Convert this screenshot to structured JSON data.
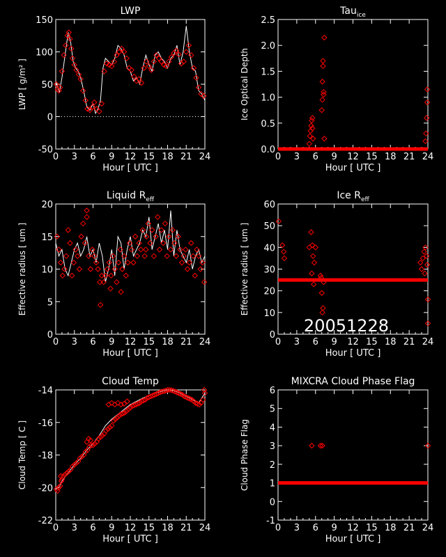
{
  "figure": {
    "background": "#000000",
    "foreground": "#ffffff",
    "marker_color": "#ff0000",
    "date_stamp": "20051228"
  },
  "chart_data": [
    {
      "id": "lwp",
      "type": "scatter",
      "title": "LWP",
      "xlabel": "Hour [ UTC ]",
      "ylabel": "LWP [ g/m² ]",
      "xlim": [
        0,
        24
      ],
      "ylim": [
        -50,
        150
      ],
      "xticks": [
        0,
        3,
        6,
        9,
        12,
        15,
        18,
        21,
        24
      ],
      "yticks": [
        -50,
        0,
        50,
        100,
        150
      ],
      "zero_line": true,
      "series": [
        {
          "role": "line",
          "color": "#ffffff",
          "x": [
            0,
            0.3,
            0.6,
            1.0,
            1.5,
            2.0,
            2.4,
            2.8,
            3.2,
            3.6,
            4.0,
            4.5,
            5.0,
            5.5,
            6.0,
            6.4,
            6.8,
            7.2,
            7.6,
            8.0,
            8.5,
            9.0,
            9.5,
            10.0,
            10.5,
            11.0,
            11.5,
            12.0,
            12.5,
            13.0,
            13.5,
            14.0,
            14.5,
            15.0,
            15.5,
            16.0,
            16.5,
            17.0,
            17.5,
            18.0,
            18.5,
            19.0,
            19.5,
            20.0,
            20.5,
            21.0,
            21.5,
            22.0,
            22.5,
            23.0,
            23.5,
            24.0
          ],
          "y": [
            55,
            45,
            38,
            60,
            95,
            130,
            115,
            85,
            75,
            70,
            60,
            40,
            15,
            10,
            20,
            5,
            12,
            25,
            75,
            90,
            85,
            80,
            90,
            110,
            105,
            95,
            75,
            70,
            55,
            60,
            50,
            75,
            95,
            80,
            70,
            95,
            100,
            90,
            85,
            75,
            90,
            95,
            110,
            80,
            100,
            140,
            100,
            75,
            70,
            40,
            35,
            25
          ]
        },
        {
          "role": "markers",
          "marker": "diamond",
          "color": "#ff0000",
          "x": [
            0.1,
            0.3,
            0.5,
            0.7,
            1.0,
            1.3,
            1.6,
            1.9,
            2.1,
            2.3,
            2.5,
            2.7,
            3.0,
            3.3,
            3.7,
            4.0,
            4.4,
            4.8,
            5.1,
            5.5,
            5.9,
            6.2,
            6.6,
            7.0,
            7.4,
            7.8,
            8.2,
            8.6,
            9.0,
            9.4,
            9.8,
            10.2,
            10.6,
            11.0,
            11.4,
            11.8,
            12.2,
            12.6,
            13.0,
            13.4,
            13.8,
            14.2,
            14.6,
            15.0,
            15.4,
            15.8,
            16.2,
            16.6,
            17.0,
            17.4,
            17.8,
            18.2,
            18.6,
            19.0,
            19.4,
            19.8,
            20.2,
            20.6,
            21.0,
            21.4,
            21.8,
            22.2,
            22.6,
            23.0,
            23.4,
            23.8
          ],
          "y": [
            50,
            42,
            40,
            45,
            70,
            95,
            110,
            125,
            130,
            120,
            105,
            90,
            80,
            72,
            65,
            58,
            40,
            25,
            12,
            10,
            15,
            22,
            12,
            8,
            20,
            70,
            82,
            80,
            78,
            85,
            95,
            100,
            105,
            100,
            90,
            75,
            72,
            62,
            55,
            58,
            52,
            75,
            85,
            78,
            72,
            85,
            95,
            90,
            85,
            80,
            78,
            85,
            92,
            98,
            102,
            96,
            82,
            85,
            100,
            110,
            95,
            75,
            60,
            45,
            35,
            32
          ]
        }
      ]
    },
    {
      "id": "tau_ice",
      "type": "scatter",
      "title": "Tau",
      "title_sub": "ice",
      "xlabel": "Hour [ UTC ]",
      "ylabel": "Ice Optical Depth",
      "xlim": [
        0,
        24
      ],
      "ylim": [
        0,
        2.5
      ],
      "xticks": [
        0,
        3,
        6,
        9,
        12,
        15,
        18,
        21,
        24
      ],
      "yticks": [
        0.0,
        0.5,
        1.0,
        1.5,
        2.0,
        2.5
      ],
      "ytick_labels": [
        "0.0",
        "0.5",
        "1.0",
        "1.5",
        "2.0",
        "2.5"
      ],
      "baseline": {
        "y": 0,
        "from": 0,
        "to": 24
      },
      "series": [
        {
          "role": "markers",
          "marker": "diamond",
          "color": "#ff0000",
          "x": [
            5.0,
            5.1,
            5.2,
            5.3,
            5.4,
            5.5,
            5.5,
            5.6,
            7.0,
            7.1,
            7.1,
            7.2,
            7.2,
            7.3,
            7.3,
            7.4,
            7.4,
            23.7,
            23.8,
            23.9,
            23.9,
            23.6
          ],
          "y": [
            0.1,
            0.25,
            0.35,
            0.45,
            0.55,
            0.6,
            0.4,
            0.2,
            0.75,
            0.95,
            1.3,
            1.6,
            1.7,
            1.05,
            1.1,
            2.15,
            0.2,
            0.3,
            0.6,
            0.9,
            1.15,
            0.15
          ]
        }
      ]
    },
    {
      "id": "liquid_reff",
      "type": "scatter",
      "title": "Liquid R",
      "title_sub": "eff",
      "xlabel": "Hour [ UTC ]",
      "ylabel": "Effective radius [ um ]",
      "xlim": [
        0,
        24
      ],
      "ylim": [
        0,
        20
      ],
      "xticks": [
        0,
        3,
        6,
        9,
        12,
        15,
        18,
        21,
        24
      ],
      "yticks": [
        0,
        5,
        10,
        15,
        20
      ],
      "series": [
        {
          "role": "line",
          "color": "#ffffff",
          "x": [
            0,
            0.5,
            1.0,
            1.5,
            2.0,
            2.5,
            3.0,
            3.5,
            4.0,
            4.5,
            5.0,
            5.5,
            6.0,
            6.5,
            7.0,
            7.5,
            8.0,
            8.5,
            9.0,
            9.5,
            10.0,
            10.5,
            11.0,
            11.5,
            12.0,
            12.5,
            13.0,
            13.5,
            14.0,
            14.5,
            15.0,
            15.5,
            16.0,
            16.5,
            17.0,
            17.5,
            18.0,
            18.5,
            19.0,
            19.5,
            20.0,
            20.5,
            21.0,
            21.5,
            22.0,
            22.5,
            23.0,
            23.5,
            24.0
          ],
          "y": [
            14,
            12,
            13,
            10,
            9,
            11,
            13,
            14,
            12,
            13,
            15,
            12,
            13,
            11,
            14,
            12,
            8,
            10,
            13,
            9,
            15,
            14,
            10,
            13,
            15,
            12,
            13,
            14,
            16,
            15,
            18,
            13,
            15,
            17,
            14,
            16,
            13,
            19,
            12,
            16,
            13,
            12,
            11,
            13,
            10,
            12,
            13,
            11,
            12
          ]
        },
        {
          "role": "markers",
          "marker": "diamond",
          "color": "#ff0000",
          "x": [
            0.2,
            0.5,
            0.8,
            1.1,
            1.4,
            1.7,
            2.0,
            2.3,
            2.6,
            2.9,
            3.2,
            3.5,
            3.8,
            4.1,
            4.4,
            4.7,
            5.0,
            5.3,
            5.6,
            5.9,
            6.2,
            6.5,
            6.8,
            7.1,
            7.4,
            7.7,
            8.0,
            8.3,
            8.6,
            8.9,
            9.2,
            9.5,
            9.8,
            10.1,
            10.4,
            10.7,
            11.0,
            11.3,
            11.6,
            11.9,
            12.2,
            12.5,
            12.8,
            13.1,
            13.4,
            13.7,
            14.0,
            14.3,
            14.6,
            14.9,
            15.2,
            15.5,
            15.8,
            16.1,
            16.4,
            16.7,
            17.0,
            17.3,
            17.6,
            17.9,
            18.2,
            18.5,
            18.8,
            19.1,
            19.4,
            19.7,
            20.0,
            20.3,
            20.6,
            20.9,
            21.2,
            21.5,
            21.8,
            22.1,
            22.4,
            22.7,
            23.0,
            23.3,
            23.6,
            23.9,
            7.2,
            5.0,
            8.8,
            10.5,
            14.5
          ],
          "y": [
            15,
            13,
            11,
            9,
            10,
            12,
            16,
            14,
            9,
            11,
            13,
            12,
            10,
            15,
            17,
            14,
            18,
            12,
            10,
            13,
            12,
            11,
            10,
            8,
            9,
            8,
            9,
            10,
            11,
            9,
            12,
            10,
            8,
            11,
            13,
            10,
            12,
            9,
            11,
            14,
            13,
            11,
            15,
            12,
            14,
            13,
            16,
            12,
            15,
            17,
            14,
            16,
            12,
            15,
            18,
            13,
            16,
            14,
            17,
            12,
            15,
            13,
            16,
            14,
            12,
            15,
            13,
            11,
            12,
            13,
            10,
            11,
            14,
            12,
            9,
            13,
            12,
            10,
            11,
            8,
            4.5,
            19,
            7,
            6.5,
            13
          ]
        }
      ]
    },
    {
      "id": "ice_reff",
      "type": "scatter",
      "title": "Ice R",
      "title_sub": "eff",
      "xlabel": "Hour [ UTC ]",
      "ylabel": "Effective radius [ um ]",
      "xlim": [
        0,
        24
      ],
      "ylim": [
        0,
        60
      ],
      "xticks": [
        0,
        3,
        6,
        9,
        12,
        15,
        18,
        21,
        24
      ],
      "yticks": [
        0,
        10,
        20,
        30,
        40,
        50,
        60
      ],
      "baseline": {
        "y": 25,
        "from": 0,
        "to": 24
      },
      "series": [
        {
          "role": "markers",
          "marker": "diamond",
          "color": "#ff0000",
          "x": [
            0.1,
            0.7,
            0.9,
            1.0,
            5.0,
            5.3,
            5.5,
            5.6,
            5.8,
            6.0,
            5.4,
            5.7,
            6.8,
            7.0,
            7.2,
            7.1,
            6.9,
            7.3,
            23.0,
            23.2,
            23.4,
            23.6,
            23.8,
            23.9,
            24.0,
            24.0,
            23.5,
            22.8
          ],
          "y": [
            52,
            41,
            38,
            35,
            40,
            47,
            41,
            36,
            33,
            40,
            28,
            23,
            27,
            19,
            12,
            10,
            26,
            24,
            30,
            35,
            38,
            40,
            36,
            32,
            16,
            5,
            28,
            33
          ]
        }
      ]
    },
    {
      "id": "cloud_temp",
      "type": "scatter",
      "title": "Cloud Temp",
      "xlabel": "Hour [ UTC ]",
      "ylabel": "Cloud Temp [ C ]",
      "xlim": [
        0,
        24
      ],
      "ylim": [
        -22,
        -14
      ],
      "xticks": [
        0,
        3,
        6,
        9,
        12,
        15,
        18,
        21,
        24
      ],
      "yticks": [
        -22,
        -20,
        -18,
        -16,
        -14
      ],
      "series": [
        {
          "role": "line",
          "color": "#ffffff",
          "x": [
            0,
            0.5,
            1.0,
            2.0,
            3.0,
            4.0,
            5.0,
            6.0,
            7.0,
            8.0,
            9.0,
            10.0,
            11.0,
            12.0,
            13.0,
            14.0,
            15.0,
            16.0,
            17.0,
            18.0,
            19.0,
            20.0,
            21.0,
            22.0,
            23.0,
            24.0
          ],
          "y": [
            -20.1,
            -20.0,
            -19.6,
            -19.1,
            -18.6,
            -18.2,
            -17.7,
            -17.3,
            -16.8,
            -16.2,
            -15.8,
            -15.5,
            -15.2,
            -14.9,
            -14.7,
            -14.5,
            -14.35,
            -14.2,
            -14.1,
            -14.0,
            -14.05,
            -14.2,
            -14.4,
            -14.6,
            -14.8,
            -14.2
          ]
        },
        {
          "role": "markers",
          "marker": "diamond",
          "color": "#ff0000",
          "x": [
            0.1,
            0.3,
            0.5,
            0.7,
            0.9,
            1.2,
            1.5,
            1.8,
            2.1,
            2.4,
            2.7,
            3.0,
            3.3,
            3.6,
            3.9,
            4.2,
            4.5,
            4.8,
            5.1,
            5.4,
            5.7,
            6.0,
            6.3,
            6.6,
            6.9,
            7.2,
            7.5,
            7.8,
            8.1,
            8.4,
            8.7,
            9.0,
            9.3,
            9.6,
            9.9,
            10.2,
            10.5,
            10.8,
            11.1,
            11.4,
            11.7,
            12.0,
            12.3,
            12.6,
            12.9,
            13.2,
            13.5,
            13.8,
            14.1,
            14.4,
            14.7,
            15.0,
            15.3,
            15.6,
            15.9,
            16.2,
            16.5,
            16.8,
            17.1,
            17.4,
            17.7,
            18.0,
            18.3,
            18.6,
            18.9,
            19.2,
            19.5,
            19.8,
            20.1,
            20.4,
            20.7,
            21.0,
            21.3,
            21.6,
            21.9,
            22.2,
            22.5,
            22.8,
            23.1,
            23.4,
            23.7,
            24.0,
            8.5,
            9.0,
            9.5,
            10.0,
            10.5,
            11.0,
            11.5,
            5.0,
            5.3,
            5.6,
            0.8,
            1.0,
            23.9
          ],
          "y": [
            -20.1,
            -20.2,
            -20.0,
            -19.9,
            -19.6,
            -19.3,
            -19.2,
            -19.1,
            -19.0,
            -18.9,
            -18.7,
            -18.6,
            -18.5,
            -18.4,
            -18.2,
            -18.1,
            -18.0,
            -17.8,
            -17.7,
            -17.5,
            -17.4,
            -17.4,
            -17.3,
            -17.2,
            -17.0,
            -16.9,
            -16.8,
            -16.7,
            -16.5,
            -16.4,
            -16.3,
            -16.2,
            -15.9,
            -15.8,
            -15.7,
            -15.6,
            -15.5,
            -15.45,
            -15.4,
            -15.3,
            -15.2,
            -15.1,
            -15.0,
            -14.95,
            -14.9,
            -14.85,
            -14.8,
            -14.7,
            -14.65,
            -14.6,
            -14.5,
            -14.45,
            -14.4,
            -14.35,
            -14.3,
            -14.25,
            -14.2,
            -14.15,
            -14.1,
            -14.08,
            -14.05,
            -14.0,
            -14.0,
            -14.02,
            -14.05,
            -14.1,
            -14.15,
            -14.2,
            -14.25,
            -14.3,
            -14.4,
            -14.45,
            -14.5,
            -14.55,
            -14.6,
            -14.7,
            -14.8,
            -14.85,
            -14.9,
            -14.8,
            -14.6,
            -14.2,
            -14.9,
            -14.8,
            -14.9,
            -14.8,
            -14.9,
            -14.85,
            -14.7,
            -17.2,
            -17.0,
            -17.1,
            -19.3,
            -19.5,
            -14.0
          ]
        }
      ]
    },
    {
      "id": "phase_flag",
      "type": "scatter",
      "title": "MIXCRA Cloud Phase Flag",
      "xlabel": "Hour [ UTC ]",
      "ylabel": "Cloud Phase Flag",
      "xlim": [
        0,
        24
      ],
      "ylim": [
        -1,
        6
      ],
      "xticks": [
        0,
        3,
        6,
        9,
        12,
        15,
        18,
        21,
        24
      ],
      "yticks": [
        -1,
        0,
        1,
        2,
        3,
        4,
        5,
        6
      ],
      "baseline": {
        "y": 1,
        "from": 0,
        "to": 24
      },
      "series": [
        {
          "role": "markers",
          "marker": "diamond",
          "color": "#ff0000",
          "x": [
            5.4,
            6.8,
            7.1,
            24.0
          ],
          "y": [
            3,
            3,
            3,
            3
          ]
        }
      ]
    }
  ]
}
